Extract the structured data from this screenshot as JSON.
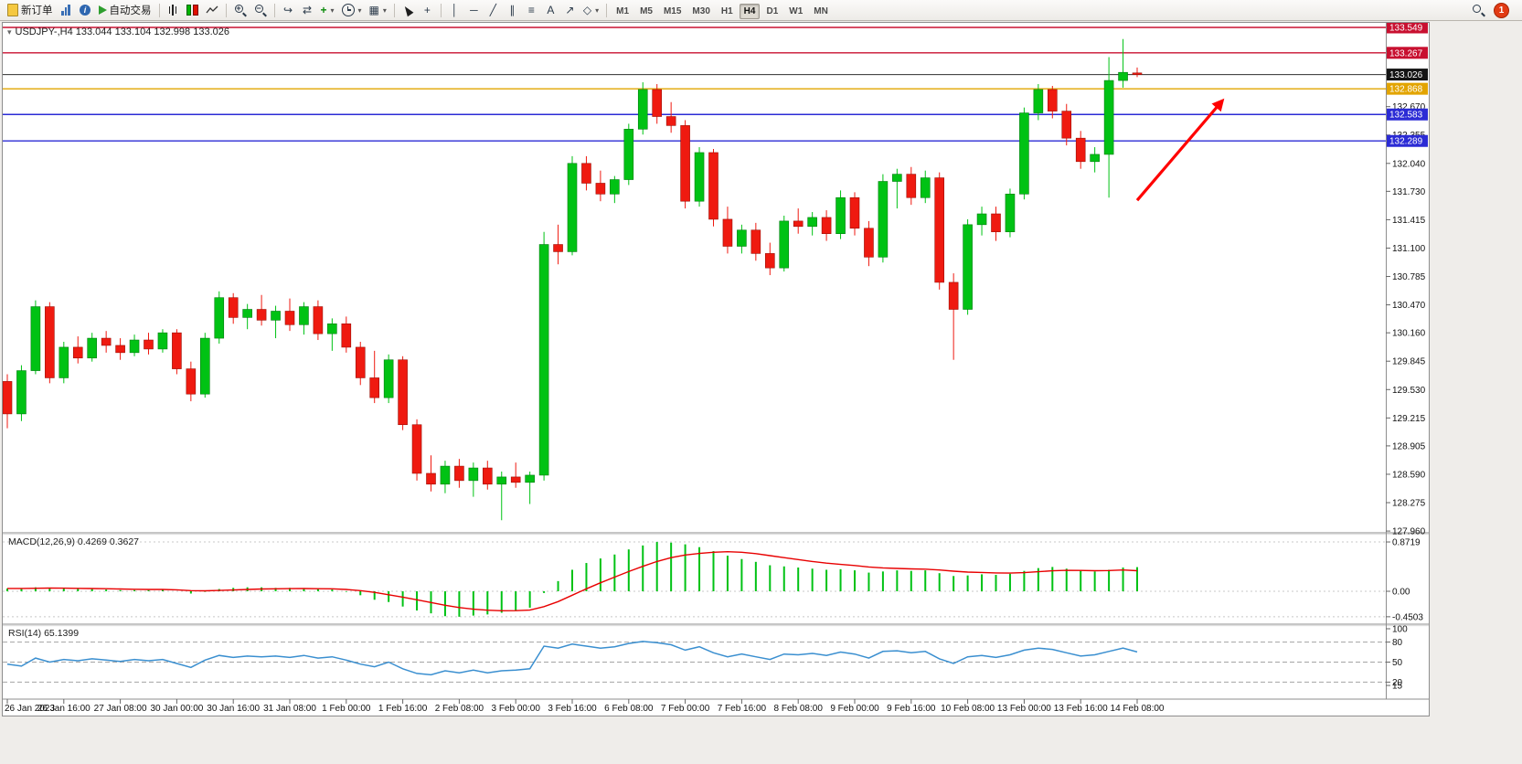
{
  "toolbar": {
    "new_order_label": "新订单",
    "auto_trading_label": "自动交易",
    "timeframes": [
      "M1",
      "M5",
      "M15",
      "M30",
      "H1",
      "H4",
      "D1",
      "W1",
      "MN"
    ],
    "active_timeframe": "H4",
    "notification_count": "1",
    "icons": {
      "caret": "▾",
      "zoom_in": "+",
      "zoom_out": "−",
      "auto_scroll": "↪",
      "chart_shift": "⇄",
      "new_chart": "+",
      "templates": "▦",
      "crosshair": "+",
      "vertical_line": "│",
      "horizontal_line": "─",
      "trend_line": "╱",
      "channel": "∥",
      "fibonacci": "≡",
      "text_tool": "A",
      "arrow_tool": "↗",
      "shapes": "◇"
    }
  },
  "chart": {
    "symbol_info": "USDJPY-,H4 133.044 133.104 132.998 133.026",
    "current_price": {
      "label": "133.026",
      "value": 133.026,
      "color": "#141414"
    },
    "levels": [
      {
        "label": "133.549",
        "value": 133.549,
        "color": "#C81030"
      },
      {
        "label": "133.267",
        "value": 133.267,
        "color": "#C81030"
      },
      {
        "label": "132.868",
        "value": 132.868,
        "color": "#E2A400"
      },
      {
        "label": "132.583",
        "value": 132.583,
        "color": "#2B2BD5"
      },
      {
        "label": "132.289",
        "value": 132.289,
        "color": "#2B2BD5"
      }
    ],
    "up_color": "#00C214",
    "down_color": "#EF1A10",
    "annotation_arrow_color": "#FF0000"
  },
  "macd_panel": {
    "label": "MACD(12,26,9) 0.4269 0.3627",
    "scale": [
      "0.8719",
      "0.00",
      "-0.4503"
    ],
    "histogram_color": "#00C214",
    "signal_color": "#E80000"
  },
  "rsi_panel": {
    "label": "RSI(14) 65.1399",
    "scale": [
      "100",
      "80",
      "50",
      "20",
      "15"
    ],
    "line_color": "#3A8FD0"
  },
  "chart_data": {
    "type": "candlestick",
    "title": "USDJPY- H4",
    "ylim": [
      127.96,
      133.59
    ],
    "price_axis_labels": [
      "132.670",
      "132.355",
      "132.040",
      "131.730",
      "131.415",
      "131.100",
      "130.785",
      "130.470",
      "130.160",
      "129.845",
      "129.530",
      "129.215",
      "128.905",
      "128.590",
      "128.275",
      "127.960"
    ],
    "time_axis": [
      "26 Jan 2023",
      "26 Jan 16:00",
      "27 Jan 08:00",
      "30 Jan 00:00",
      "30 Jan 16:00",
      "31 Jan 08:00",
      "1 Feb 00:00",
      "1 Feb 16:00",
      "2 Feb 08:00",
      "3 Feb 00:00",
      "3 Feb 16:00",
      "6 Feb 08:00",
      "7 Feb 00:00",
      "7 Feb 16:00",
      "8 Feb 08:00",
      "9 Feb 00:00",
      "9 Feb 16:00",
      "10 Feb 08:00",
      "13 Feb 00:00",
      "13 Feb 16:00",
      "14 Feb 08:00"
    ],
    "candles": [
      [
        129.62,
        129.7,
        129.1,
        129.26
      ],
      [
        129.26,
        129.8,
        129.18,
        129.74
      ],
      [
        129.74,
        130.52,
        129.7,
        130.45
      ],
      [
        130.45,
        130.5,
        129.6,
        129.66
      ],
      [
        129.66,
        130.06,
        129.6,
        130.0
      ],
      [
        130.0,
        130.12,
        129.82,
        129.88
      ],
      [
        129.88,
        130.16,
        129.84,
        130.1
      ],
      [
        130.1,
        130.18,
        129.94,
        130.02
      ],
      [
        130.02,
        130.1,
        129.86,
        129.94
      ],
      [
        129.94,
        130.14,
        129.9,
        130.08
      ],
      [
        130.08,
        130.16,
        129.92,
        129.98
      ],
      [
        129.98,
        130.2,
        129.94,
        130.16
      ],
      [
        130.16,
        130.2,
        129.7,
        129.76
      ],
      [
        129.76,
        129.84,
        129.4,
        129.48
      ],
      [
        129.48,
        130.16,
        129.44,
        130.1
      ],
      [
        130.1,
        130.62,
        130.04,
        130.55
      ],
      [
        130.55,
        130.6,
        130.26,
        130.33
      ],
      [
        130.33,
        130.48,
        130.2,
        130.42
      ],
      [
        130.42,
        130.58,
        130.24,
        130.3
      ],
      [
        130.3,
        130.46,
        130.1,
        130.4
      ],
      [
        130.4,
        130.54,
        130.18,
        130.25
      ],
      [
        130.25,
        130.5,
        130.14,
        130.45
      ],
      [
        130.45,
        130.52,
        130.08,
        130.15
      ],
      [
        130.15,
        130.32,
        129.96,
        130.26
      ],
      [
        130.26,
        130.34,
        129.94,
        130.0
      ],
      [
        130.0,
        130.06,
        129.58,
        129.66
      ],
      [
        129.66,
        129.96,
        129.38,
        129.44
      ],
      [
        129.44,
        129.92,
        129.38,
        129.86
      ],
      [
        129.86,
        129.9,
        129.08,
        129.14
      ],
      [
        129.14,
        129.2,
        128.52,
        128.6
      ],
      [
        128.6,
        128.8,
        128.4,
        128.48
      ],
      [
        128.48,
        128.74,
        128.38,
        128.68
      ],
      [
        128.68,
        128.76,
        128.44,
        128.52
      ],
      [
        128.52,
        128.72,
        128.34,
        128.66
      ],
      [
        128.66,
        128.74,
        128.42,
        128.48
      ],
      [
        128.48,
        128.62,
        128.08,
        128.56
      ],
      [
        128.56,
        128.72,
        128.44,
        128.5
      ],
      [
        128.5,
        128.62,
        128.26,
        128.58
      ],
      [
        128.58,
        131.28,
        128.52,
        131.14
      ],
      [
        131.14,
        131.36,
        130.92,
        131.06
      ],
      [
        131.06,
        132.12,
        131.02,
        132.04
      ],
      [
        132.04,
        132.12,
        131.74,
        131.82
      ],
      [
        131.82,
        131.96,
        131.62,
        131.7
      ],
      [
        131.7,
        131.9,
        131.6,
        131.86
      ],
      [
        131.86,
        132.48,
        131.8,
        132.42
      ],
      [
        132.42,
        132.94,
        132.36,
        132.86
      ],
      [
        132.86,
        132.92,
        132.48,
        132.56
      ],
      [
        132.56,
        132.72,
        132.38,
        132.46
      ],
      [
        132.46,
        132.52,
        131.54,
        131.62
      ],
      [
        131.62,
        132.22,
        131.56,
        132.16
      ],
      [
        132.16,
        132.2,
        131.34,
        131.42
      ],
      [
        131.42,
        131.56,
        131.04,
        131.12
      ],
      [
        131.12,
        131.36,
        131.04,
        131.3
      ],
      [
        131.3,
        131.38,
        130.96,
        131.04
      ],
      [
        131.04,
        131.16,
        130.8,
        130.88
      ],
      [
        130.88,
        131.46,
        130.84,
        131.4
      ],
      [
        131.4,
        131.54,
        131.26,
        131.34
      ],
      [
        131.34,
        131.5,
        131.24,
        131.44
      ],
      [
        131.44,
        131.52,
        131.18,
        131.26
      ],
      [
        131.26,
        131.74,
        131.2,
        131.66
      ],
      [
        131.66,
        131.72,
        131.24,
        131.32
      ],
      [
        131.32,
        131.4,
        130.9,
        131.0
      ],
      [
        131.0,
        131.92,
        130.94,
        131.84
      ],
      [
        131.84,
        131.98,
        131.54,
        131.92
      ],
      [
        131.92,
        132.0,
        131.58,
        131.66
      ],
      [
        131.66,
        131.96,
        131.6,
        131.88
      ],
      [
        131.88,
        131.94,
        130.64,
        130.72
      ],
      [
        130.72,
        130.82,
        129.86,
        130.42
      ],
      [
        130.42,
        131.42,
        130.36,
        131.36
      ],
      [
        131.36,
        131.56,
        131.24,
        131.48
      ],
      [
        131.48,
        131.56,
        131.18,
        131.28
      ],
      [
        131.28,
        131.76,
        131.22,
        131.7
      ],
      [
        131.7,
        132.66,
        131.64,
        132.6
      ],
      [
        132.6,
        132.92,
        132.52,
        132.86
      ],
      [
        132.86,
        132.9,
        132.54,
        132.62
      ],
      [
        132.62,
        132.7,
        132.24,
        132.32
      ],
      [
        132.32,
        132.4,
        131.98,
        132.06
      ],
      [
        132.06,
        132.22,
        131.94,
        132.14
      ],
      [
        132.14,
        133.22,
        131.66,
        132.96
      ],
      [
        132.96,
        133.42,
        132.88,
        133.05
      ],
      [
        133.044,
        133.104,
        132.998,
        133.026
      ]
    ],
    "macd_histogram": [
      0.05,
      0.05,
      0.07,
      0.06,
      0.05,
      0.04,
      0.04,
      0.03,
      0.02,
      0.02,
      0.02,
      0.03,
      0.0,
      -0.04,
      -0.01,
      0.04,
      0.06,
      0.07,
      0.07,
      0.06,
      0.06,
      0.05,
      0.04,
      0.03,
      -0.01,
      -0.07,
      -0.15,
      -0.19,
      -0.27,
      -0.34,
      -0.39,
      -0.44,
      -0.4503,
      -0.43,
      -0.41,
      -0.38,
      -0.34,
      -0.29,
      -0.03,
      0.18,
      0.38,
      0.5,
      0.58,
      0.65,
      0.74,
      0.81,
      0.8719,
      0.86,
      0.83,
      0.78,
      0.71,
      0.63,
      0.57,
      0.52,
      0.46,
      0.44,
      0.42,
      0.4,
      0.38,
      0.39,
      0.37,
      0.33,
      0.35,
      0.37,
      0.36,
      0.37,
      0.32,
      0.27,
      0.28,
      0.3,
      0.29,
      0.31,
      0.36,
      0.41,
      0.43,
      0.4,
      0.37,
      0.35,
      0.38,
      0.42,
      0.4269
    ],
    "macd_signal": [
      0.05,
      0.05,
      0.054,
      0.056,
      0.055,
      0.052,
      0.049,
      0.045,
      0.04,
      0.036,
      0.033,
      0.032,
      0.026,
      0.012,
      0.008,
      0.014,
      0.023,
      0.032,
      0.04,
      0.044,
      0.047,
      0.048,
      0.046,
      0.043,
      0.032,
      0.012,
      -0.02,
      -0.062,
      -0.104,
      -0.151,
      -0.199,
      -0.247,
      -0.288,
      -0.316,
      -0.335,
      -0.344,
      -0.343,
      -0.332,
      -0.272,
      -0.182,
      -0.07,
      0.044,
      0.151,
      0.251,
      0.349,
      0.441,
      0.527,
      0.594,
      0.641,
      0.669,
      0.69,
      0.7,
      0.69,
      0.665,
      0.63,
      0.595,
      0.56,
      0.527,
      0.497,
      0.475,
      0.455,
      0.43,
      0.413,
      0.404,
      0.396,
      0.391,
      0.377,
      0.355,
      0.34,
      0.332,
      0.324,
      0.321,
      0.329,
      0.345,
      0.362,
      0.37,
      0.369,
      0.364,
      0.367,
      0.376,
      0.3627
    ],
    "rsi": [
      47,
      44,
      56,
      50,
      54,
      52,
      55,
      53,
      51,
      54,
      52,
      54,
      48,
      42,
      53,
      60,
      57,
      59,
      58,
      59,
      57,
      60,
      56,
      58,
      53,
      47,
      43,
      50,
      40,
      33,
      31,
      37,
      34,
      38,
      34,
      37,
      38,
      40,
      74,
      71,
      77,
      74,
      71,
      73,
      78,
      81,
      79,
      76,
      68,
      73,
      64,
      58,
      62,
      58,
      54,
      62,
      61,
      63,
      60,
      65,
      62,
      56,
      66,
      67,
      64,
      66,
      55,
      48,
      58,
      60,
      57,
      61,
      68,
      71,
      69,
      64,
      59,
      61,
      66,
      71,
      65.14
    ],
    "rsi_levels": [
      80,
      50,
      20
    ],
    "annotation_arrow": {
      "from": {
        "index": 80,
        "price": 131.63
      },
      "to": {
        "index": 86,
        "price": 132.73
      }
    }
  }
}
